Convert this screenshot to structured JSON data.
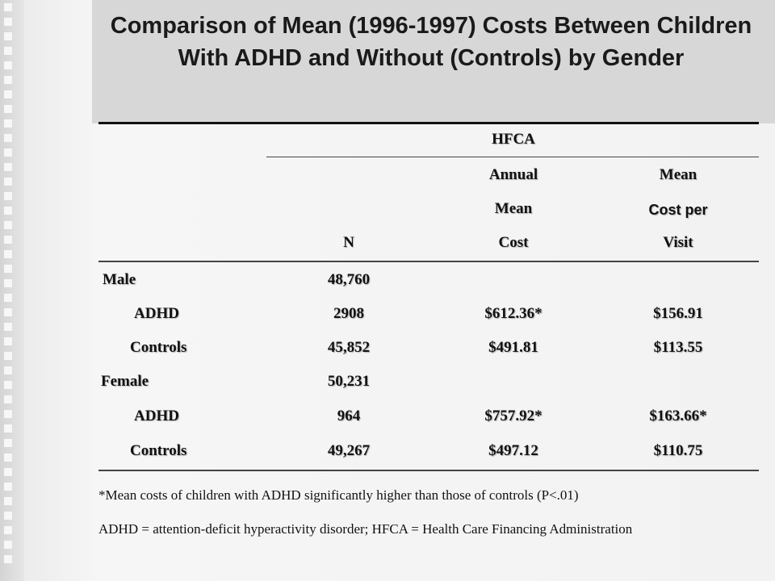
{
  "title": "Comparison of Mean (1996-1997) Costs Between Children With ADHD and Without (Controls) by Gender",
  "table": {
    "group_header": "HFCA",
    "columns": {
      "n": "N",
      "annual_line1": "Annual",
      "annual_line2": "Mean",
      "annual_line3": "Cost",
      "visit_line1": "Mean",
      "visit_line2": "Cost per",
      "visit_line3": "Visit"
    },
    "rows": [
      {
        "label": "Male",
        "n": "48,760",
        "annual": "",
        "visit": ""
      },
      {
        "label": "ADHD",
        "n": "2908",
        "annual": "$612.36*",
        "visit": "$156.91"
      },
      {
        "label": "Controls",
        "n": "45,852",
        "annual": "$491.81",
        "visit": "$113.55"
      },
      {
        "label": "Female",
        "n": "50,231",
        "annual": "",
        "visit": ""
      },
      {
        "label": "ADHD",
        "n": "964",
        "annual": "$757.92*",
        "visit": "$163.66*"
      },
      {
        "label": "Controls",
        "n": "49,267",
        "annual": "$497.12",
        "visit": "$110.75"
      }
    ]
  },
  "footnotes": {
    "significance": "*Mean costs of children with ADHD significantly higher than those of controls (P<.01)",
    "abbreviations": "ADHD = attention-deficit hyperactivity disorder; HFCA = Health Care Financing Administration"
  }
}
